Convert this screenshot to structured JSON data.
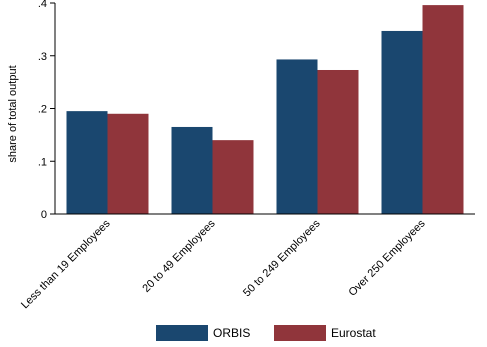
{
  "chart_data": {
    "type": "bar",
    "ylabel": "share of total output",
    "xlabel": "",
    "ylim": [
      0,
      0.4
    ],
    "yticks": [
      {
        "value": 0,
        "label": "0"
      },
      {
        "value": 0.1,
        "label": ".1"
      },
      {
        "value": 0.2,
        "label": ".2"
      },
      {
        "value": 0.3,
        "label": ".3"
      },
      {
        "value": 0.4,
        "label": ".4"
      }
    ],
    "categories": [
      "Less than 19 Employees",
      "20 to 49 Employees",
      "50 to 249 Employees",
      "Over 250 Employees"
    ],
    "series": [
      {
        "name": "ORBIS",
        "color": "#1a476f",
        "values": [
          0.195,
          0.165,
          0.293,
          0.347
        ]
      },
      {
        "name": "Eurostat",
        "color": "#90353b",
        "values": [
          0.19,
          0.14,
          0.273,
          0.396
        ]
      }
    ],
    "grid": false,
    "legend": "bottom"
  }
}
